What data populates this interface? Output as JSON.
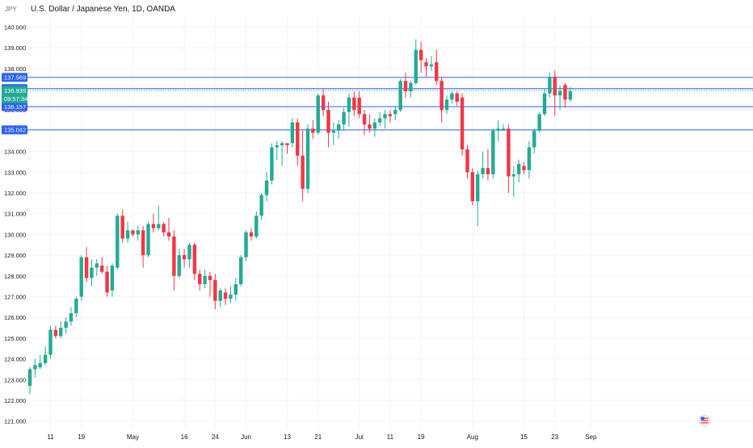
{
  "header": {
    "currency": "JPY",
    "title": "U.S. Dollar / Japanese Yen, 1D, OANDA"
  },
  "colors": {
    "up": "#22ab94",
    "down": "#f23645",
    "level_line": "#2962ff",
    "tick_text": "#131722",
    "grid": "#f0f3fa"
  },
  "chart_data": {
    "type": "candlestick",
    "title": "U.S. Dollar / Japanese Yen, 1D, OANDA",
    "y_unit": "JPY",
    "ylim": [
      120.6,
      140.6
    ],
    "y_ticks": [
      121.0,
      122.0,
      123.0,
      124.0,
      125.0,
      126.0,
      127.0,
      128.0,
      129.0,
      130.0,
      131.0,
      132.0,
      133.0,
      134.0,
      135.0,
      136.0,
      137.0,
      138.0,
      139.0,
      140.0
    ],
    "y_tick_labels": [
      "121.000",
      "122.000",
      "123.000",
      "124.000",
      "125.000",
      "126.000",
      "127.000",
      "128.000",
      "129.000",
      "130.000",
      "131.000",
      "132.000",
      "133.000",
      "134.000",
      "135.000",
      "136.000",
      "137.000",
      "138.000",
      "139.000",
      "140.000"
    ],
    "x_tick_labels": [
      {
        "label": "11",
        "bar": 4
      },
      {
        "label": "19",
        "bar": 10
      },
      {
        "label": "May",
        "bar": 20
      },
      {
        "label": "16",
        "bar": 30
      },
      {
        "label": "24",
        "bar": 36
      },
      {
        "label": "Jun",
        "bar": 42
      },
      {
        "label": "13",
        "bar": 50
      },
      {
        "label": "21",
        "bar": 56
      },
      {
        "label": "Jul",
        "bar": 64
      },
      {
        "label": "11",
        "bar": 70
      },
      {
        "label": "19",
        "bar": 76
      },
      {
        "label": "Aug",
        "bar": 86
      },
      {
        "label": "15",
        "bar": 96
      },
      {
        "label": "23",
        "bar": 102
      },
      {
        "label": "Sep",
        "bar": 109
      }
    ],
    "candles": [
      {
        "o": 122.7,
        "h": 123.6,
        "l": 122.3,
        "c": 123.5
      },
      {
        "o": 123.5,
        "h": 124.0,
        "l": 123.1,
        "c": 123.7
      },
      {
        "o": 123.6,
        "h": 124.2,
        "l": 123.5,
        "c": 123.8
      },
      {
        "o": 123.8,
        "h": 124.6,
        "l": 123.7,
        "c": 124.2
      },
      {
        "o": 124.2,
        "h": 125.6,
        "l": 124.0,
        "c": 125.4
      },
      {
        "o": 125.4,
        "h": 125.6,
        "l": 125.0,
        "c": 125.1
      },
      {
        "o": 125.1,
        "h": 125.8,
        "l": 125.0,
        "c": 125.5
      },
      {
        "o": 125.5,
        "h": 126.0,
        "l": 125.2,
        "c": 125.8
      },
      {
        "o": 125.8,
        "h": 126.5,
        "l": 125.6,
        "c": 126.2
      },
      {
        "o": 126.2,
        "h": 127.0,
        "l": 126.0,
        "c": 126.9
      },
      {
        "o": 127.0,
        "h": 129.0,
        "l": 126.8,
        "c": 128.9
      },
      {
        "o": 128.9,
        "h": 129.4,
        "l": 127.7,
        "c": 127.9
      },
      {
        "o": 127.9,
        "h": 128.8,
        "l": 127.5,
        "c": 128.4
      },
      {
        "o": 128.4,
        "h": 128.8,
        "l": 128.0,
        "c": 128.6
      },
      {
        "o": 128.5,
        "h": 128.9,
        "l": 128.1,
        "c": 128.2
      },
      {
        "o": 128.2,
        "h": 128.5,
        "l": 127.0,
        "c": 127.2
      },
      {
        "o": 127.3,
        "h": 128.6,
        "l": 127.0,
        "c": 128.5
      },
      {
        "o": 128.4,
        "h": 131.0,
        "l": 128.3,
        "c": 130.9
      },
      {
        "o": 130.9,
        "h": 131.2,
        "l": 129.6,
        "c": 129.8
      },
      {
        "o": 129.8,
        "h": 130.6,
        "l": 129.6,
        "c": 130.2
      },
      {
        "o": 130.2,
        "h": 130.2,
        "l": 129.9,
        "c": 130.0
      },
      {
        "o": 130.0,
        "h": 130.4,
        "l": 129.7,
        "c": 130.2
      },
      {
        "o": 130.2,
        "h": 130.4,
        "l": 128.4,
        "c": 129.0
      },
      {
        "o": 129.0,
        "h": 130.6,
        "l": 128.9,
        "c": 130.5
      },
      {
        "o": 130.5,
        "h": 131.0,
        "l": 130.1,
        "c": 130.3
      },
      {
        "o": 130.3,
        "h": 131.4,
        "l": 130.2,
        "c": 130.5
      },
      {
        "o": 130.5,
        "h": 130.6,
        "l": 129.9,
        "c": 130.1
      },
      {
        "o": 130.1,
        "h": 130.8,
        "l": 129.7,
        "c": 129.9
      },
      {
        "o": 129.9,
        "h": 130.2,
        "l": 127.3,
        "c": 128.0
      },
      {
        "o": 128.0,
        "h": 129.3,
        "l": 127.9,
        "c": 129.0
      },
      {
        "o": 129.0,
        "h": 129.3,
        "l": 128.4,
        "c": 128.8
      },
      {
        "o": 128.8,
        "h": 129.6,
        "l": 128.4,
        "c": 129.5
      },
      {
        "o": 129.5,
        "h": 129.6,
        "l": 127.8,
        "c": 128.1
      },
      {
        "o": 128.1,
        "h": 128.3,
        "l": 127.3,
        "c": 127.6
      },
      {
        "o": 127.6,
        "h": 128.3,
        "l": 127.4,
        "c": 128.0
      },
      {
        "o": 128.0,
        "h": 128.2,
        "l": 127.0,
        "c": 127.8
      },
      {
        "o": 127.8,
        "h": 128.1,
        "l": 126.4,
        "c": 126.8
      },
      {
        "o": 126.8,
        "h": 127.4,
        "l": 126.5,
        "c": 127.3
      },
      {
        "o": 127.2,
        "h": 127.4,
        "l": 126.6,
        "c": 126.9
      },
      {
        "o": 126.9,
        "h": 127.5,
        "l": 126.7,
        "c": 127.1
      },
      {
        "o": 127.1,
        "h": 127.9,
        "l": 126.8,
        "c": 127.6
      },
      {
        "o": 127.6,
        "h": 129.0,
        "l": 127.5,
        "c": 128.9
      },
      {
        "o": 128.9,
        "h": 130.2,
        "l": 128.7,
        "c": 130.1
      },
      {
        "o": 130.1,
        "h": 130.3,
        "l": 129.7,
        "c": 129.9
      },
      {
        "o": 129.9,
        "h": 131.1,
        "l": 129.8,
        "c": 130.9
      },
      {
        "o": 130.9,
        "h": 132.0,
        "l": 130.7,
        "c": 131.9
      },
      {
        "o": 131.9,
        "h": 133.0,
        "l": 131.6,
        "c": 132.6
      },
      {
        "o": 132.6,
        "h": 134.4,
        "l": 132.4,
        "c": 134.2
      },
      {
        "o": 134.2,
        "h": 134.5,
        "l": 133.6,
        "c": 134.3
      },
      {
        "o": 134.3,
        "h": 134.5,
        "l": 133.3,
        "c": 134.4
      },
      {
        "o": 134.4,
        "h": 134.4,
        "l": 133.9,
        "c": 134.3
      },
      {
        "o": 134.4,
        "h": 135.6,
        "l": 134.2,
        "c": 135.4
      },
      {
        "o": 135.4,
        "h": 135.6,
        "l": 133.3,
        "c": 133.8
      },
      {
        "o": 133.8,
        "h": 135.0,
        "l": 131.6,
        "c": 132.2
      },
      {
        "o": 132.2,
        "h": 135.3,
        "l": 132.0,
        "c": 135.1
      },
      {
        "o": 135.1,
        "h": 135.5,
        "l": 134.6,
        "c": 134.9
      },
      {
        "o": 134.9,
        "h": 136.8,
        "l": 134.8,
        "c": 136.7
      },
      {
        "o": 136.7,
        "h": 137.0,
        "l": 135.7,
        "c": 136.0
      },
      {
        "o": 136.0,
        "h": 136.4,
        "l": 134.2,
        "c": 134.9
      },
      {
        "o": 134.9,
        "h": 135.4,
        "l": 134.3,
        "c": 135.0
      },
      {
        "o": 135.0,
        "h": 135.5,
        "l": 134.6,
        "c": 135.3
      },
      {
        "o": 135.3,
        "h": 136.1,
        "l": 135.0,
        "c": 135.9
      },
      {
        "o": 135.9,
        "h": 136.8,
        "l": 135.2,
        "c": 136.6
      },
      {
        "o": 136.6,
        "h": 136.9,
        "l": 135.7,
        "c": 136.0
      },
      {
        "o": 136.6,
        "h": 136.9,
        "l": 135.6,
        "c": 135.8
      },
      {
        "o": 135.8,
        "h": 136.0,
        "l": 134.8,
        "c": 135.3
      },
      {
        "o": 135.3,
        "h": 135.8,
        "l": 134.9,
        "c": 135.1
      },
      {
        "o": 135.1,
        "h": 135.6,
        "l": 134.7,
        "c": 135.4
      },
      {
        "o": 135.4,
        "h": 135.9,
        "l": 135.2,
        "c": 135.6
      },
      {
        "o": 135.6,
        "h": 136.0,
        "l": 135.1,
        "c": 135.8
      },
      {
        "o": 135.8,
        "h": 136.0,
        "l": 135.4,
        "c": 135.7
      },
      {
        "o": 135.8,
        "h": 136.2,
        "l": 135.5,
        "c": 136.0
      },
      {
        "o": 136.0,
        "h": 137.5,
        "l": 135.9,
        "c": 137.4
      },
      {
        "o": 137.4,
        "h": 137.8,
        "l": 136.6,
        "c": 136.9
      },
      {
        "o": 136.9,
        "h": 137.4,
        "l": 136.6,
        "c": 137.3
      },
      {
        "o": 137.3,
        "h": 139.4,
        "l": 137.2,
        "c": 138.9
      },
      {
        "o": 138.9,
        "h": 139.3,
        "l": 137.8,
        "c": 138.4
      },
      {
        "o": 138.3,
        "h": 138.5,
        "l": 137.6,
        "c": 138.1
      },
      {
        "o": 138.1,
        "h": 138.6,
        "l": 137.9,
        "c": 138.2
      },
      {
        "o": 138.3,
        "h": 138.9,
        "l": 137.2,
        "c": 137.4
      },
      {
        "o": 137.4,
        "h": 137.6,
        "l": 135.4,
        "c": 136.0
      },
      {
        "o": 136.0,
        "h": 136.7,
        "l": 135.8,
        "c": 136.5
      },
      {
        "o": 136.5,
        "h": 136.9,
        "l": 136.3,
        "c": 136.8
      },
      {
        "o": 136.8,
        "h": 136.9,
        "l": 136.2,
        "c": 136.4
      },
      {
        "o": 136.6,
        "h": 136.8,
        "l": 133.8,
        "c": 134.1
      },
      {
        "o": 134.1,
        "h": 134.3,
        "l": 132.7,
        "c": 133.0
      },
      {
        "o": 133.0,
        "h": 133.2,
        "l": 131.4,
        "c": 131.6
      },
      {
        "o": 131.6,
        "h": 133.1,
        "l": 130.4,
        "c": 132.9
      },
      {
        "o": 132.9,
        "h": 134.0,
        "l": 132.7,
        "c": 133.2
      },
      {
        "o": 133.2,
        "h": 134.1,
        "l": 132.6,
        "c": 132.9
      },
      {
        "o": 132.9,
        "h": 135.1,
        "l": 132.7,
        "c": 135.0
      },
      {
        "o": 135.0,
        "h": 135.5,
        "l": 134.5,
        "c": 135.1
      },
      {
        "o": 135.0,
        "h": 135.3,
        "l": 135.0,
        "c": 135.1
      },
      {
        "o": 135.1,
        "h": 135.3,
        "l": 132.0,
        "c": 132.8
      },
      {
        "o": 132.8,
        "h": 133.3,
        "l": 131.8,
        "c": 132.9
      },
      {
        "o": 132.9,
        "h": 133.6,
        "l": 132.5,
        "c": 133.4
      },
      {
        "o": 133.3,
        "h": 133.5,
        "l": 132.9,
        "c": 133.1
      },
      {
        "o": 133.1,
        "h": 134.5,
        "l": 132.7,
        "c": 134.2
      },
      {
        "o": 134.2,
        "h": 135.1,
        "l": 133.9,
        "c": 135.0
      },
      {
        "o": 135.0,
        "h": 135.9,
        "l": 134.9,
        "c": 135.8
      },
      {
        "o": 135.8,
        "h": 137.0,
        "l": 135.7,
        "c": 136.8
      },
      {
        "o": 136.8,
        "h": 137.8,
        "l": 136.6,
        "c": 137.6
      },
      {
        "o": 137.6,
        "h": 137.9,
        "l": 135.7,
        "c": 136.7
      },
      {
        "o": 136.7,
        "h": 137.2,
        "l": 136.0,
        "c": 136.9
      },
      {
        "o": 137.2,
        "h": 137.3,
        "l": 136.1,
        "c": 136.5
      },
      {
        "o": 136.5,
        "h": 137.1,
        "l": 136.4,
        "c": 136.9
      }
    ],
    "level_lines": [
      {
        "value": 137.569,
        "label": "137.569"
      },
      {
        "value": 137.031,
        "label": "137.031"
      },
      {
        "value": 136.157,
        "label": "136.157"
      },
      {
        "value": 135.042,
        "label": "135.042"
      }
    ],
    "current_price": {
      "value": 136.939,
      "label": "136.939",
      "countdown": "09:57:34"
    },
    "grid": true
  }
}
